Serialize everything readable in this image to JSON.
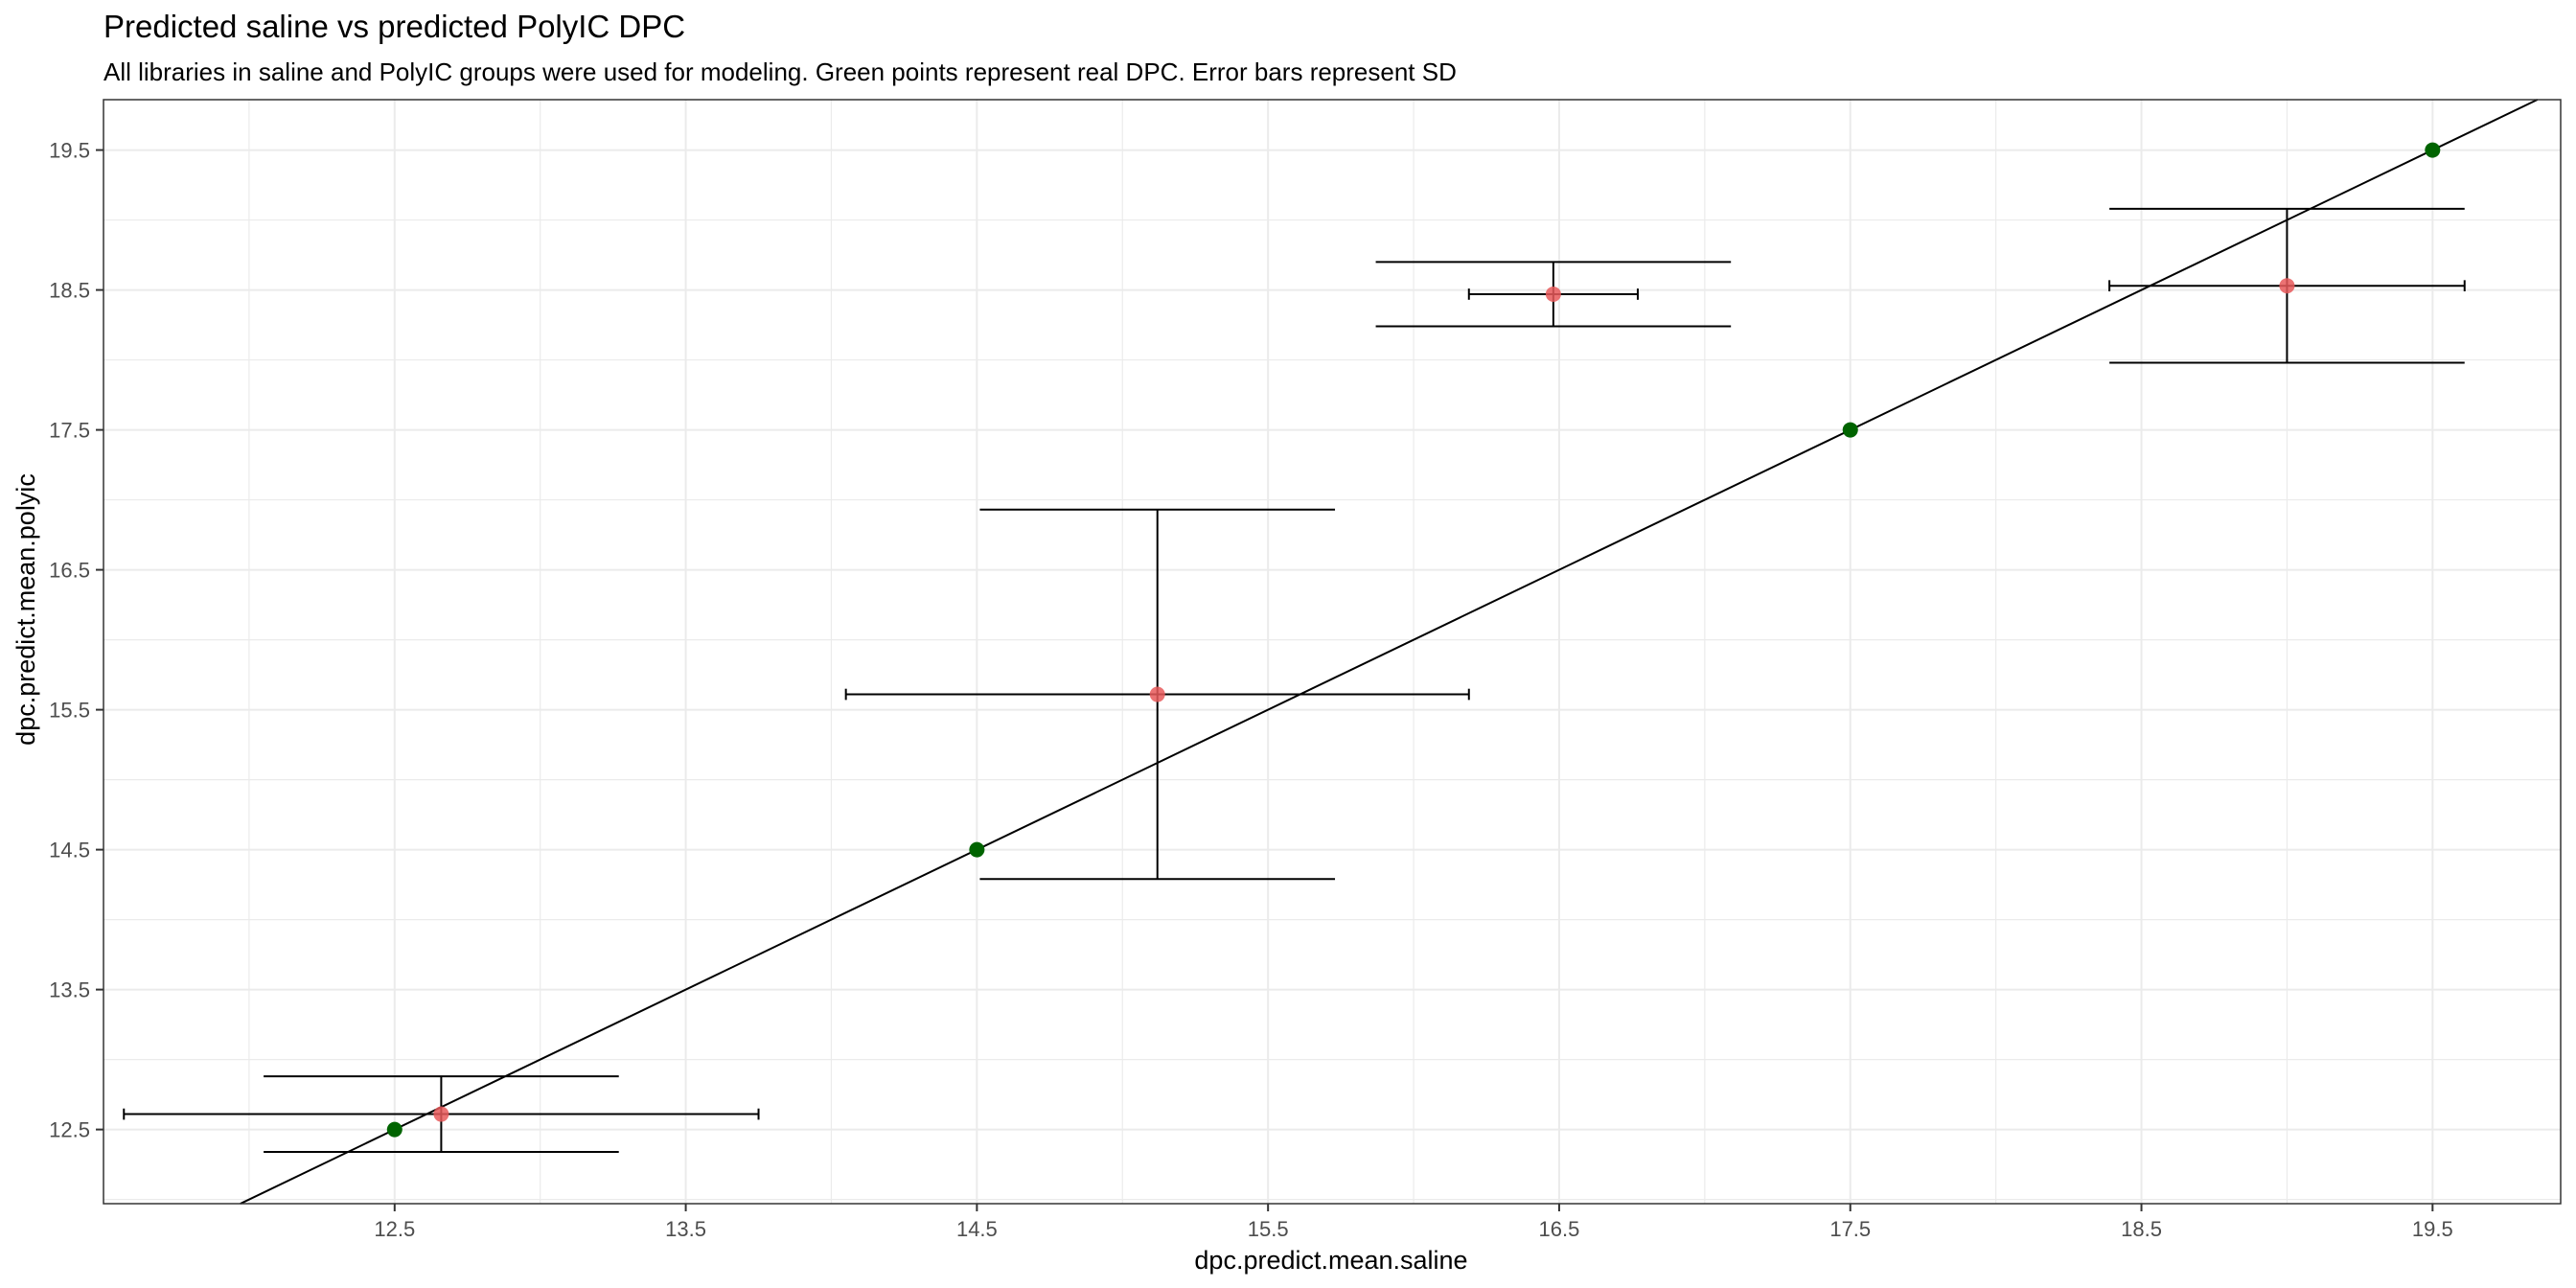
{
  "chart_data": {
    "type": "scatter",
    "title": "Predicted saline vs predicted PolyIC DPC",
    "subtitle": "All libraries in saline and PolyIC groups were used for modeling. Green points represent real DPC. Error bars represent SD",
    "xlabel": "dpc.predict.mean.saline",
    "ylabel": "dpc.predict.mean.polyic",
    "xlim": [
      11.5,
      19.94
    ],
    "ylim": [
      11.97,
      19.86
    ],
    "xticks": [
      "12.5",
      "13.5",
      "14.5",
      "15.5",
      "16.5",
      "17.5",
      "18.5",
      "19.5"
    ],
    "yticks": [
      "12.5",
      "13.5",
      "14.5",
      "15.5",
      "16.5",
      "17.5",
      "18.5",
      "19.5"
    ],
    "grid": true,
    "colors": {
      "predicted": "#E8595A",
      "real": "#006400",
      "line": "#000000",
      "grid": "#EBEBEB",
      "panel_border": "#333333"
    },
    "identity_line": {
      "slope": 1,
      "intercept": 0
    },
    "real_points": [
      {
        "x": 12.5,
        "y": 12.5
      },
      {
        "x": 14.5,
        "y": 14.5
      },
      {
        "x": 17.5,
        "y": 17.5
      },
      {
        "x": 19.5,
        "y": 19.5
      }
    ],
    "predicted_points": [
      {
        "x": 12.66,
        "y": 12.61,
        "x_sd": 1.09,
        "y_sd": 0.27
      },
      {
        "x": 15.12,
        "y": 15.61,
        "x_sd": 1.07,
        "y_sd": 1.32
      },
      {
        "x": 16.48,
        "y": 18.47,
        "x_sd": 0.29,
        "y_sd": 0.23
      },
      {
        "x": 19.0,
        "y": 18.53,
        "x_sd": 0.61,
        "y_sd": 0.55
      }
    ]
  }
}
